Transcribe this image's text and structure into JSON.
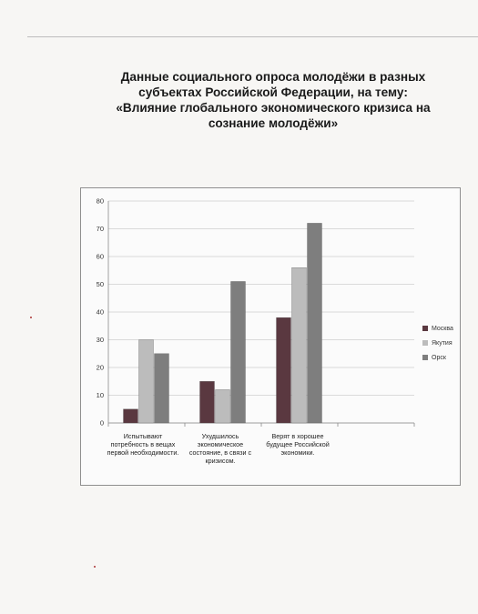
{
  "title_lines": [
    "Данные  социального опроса молодёжи в разных",
    "субъектах Российской Федерации, на тему:",
    "«Влияние глобального экономического кризиса на",
    "сознание молодёжи»"
  ],
  "chart_data": {
    "type": "bar",
    "categories": [
      "Испытывают потребность в вещах первой необходимости.",
      "Ухудшилось экономическое состояние, в связи с кризисом.",
      "Верят в хорошее будущее Российской экономики."
    ],
    "series": [
      {
        "name": "Москва",
        "values": [
          5,
          15,
          38
        ],
        "color": "#5a3840"
      },
      {
        "name": "Якутия",
        "values": [
          30,
          12,
          56
        ],
        "color": "#bcbcbc"
      },
      {
        "name": "Орск",
        "values": [
          25,
          51,
          72
        ],
        "color": "#7e7e7e"
      }
    ],
    "ylim": [
      0,
      80
    ],
    "yticks": [
      0,
      10,
      20,
      30,
      40,
      50,
      60,
      70,
      80
    ],
    "grid": true,
    "legend_position": "right",
    "xlabel": "",
    "ylabel": ""
  }
}
